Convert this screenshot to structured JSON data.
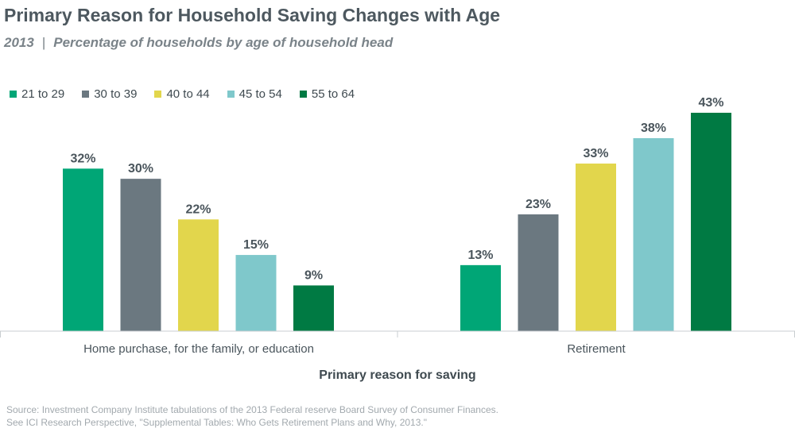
{
  "title": "Primary Reason for Household Saving Changes with Age",
  "subtitle": {
    "year": "2013",
    "separator": "|",
    "text": "Percentage of households by age of household head"
  },
  "source": {
    "line1": "Source: Investment Company Institute tabulations of the 2013 Federal reserve Board Survey of Consumer Finances.",
    "line2": "See ICI Research Perspective, \"Supplemental Tables: Who Gets Retirement Plans and Why, 2013.\""
  },
  "chart_data": {
    "type": "bar",
    "xlabel": "Primary reason for saving",
    "ylabel": "",
    "ylim": [
      0,
      45
    ],
    "grid": false,
    "legend_position": "top-left",
    "categories": [
      "Home purchase, for the family, or education",
      "Retirement"
    ],
    "series": [
      {
        "name": "21 to 29",
        "color": "#00a676",
        "values": [
          32,
          13
        ]
      },
      {
        "name": "30 to 39",
        "color": "#6b7880",
        "values": [
          30,
          23
        ]
      },
      {
        "name": "40 to 44",
        "color": "#e2d64c",
        "values": [
          22,
          33
        ]
      },
      {
        "name": "45 to 54",
        "color": "#7fc8cb",
        "values": [
          15,
          38
        ]
      },
      {
        "name": "55 to 64",
        "color": "#007a43",
        "values": [
          9,
          43
        ]
      }
    ],
    "value_suffix": "%"
  }
}
